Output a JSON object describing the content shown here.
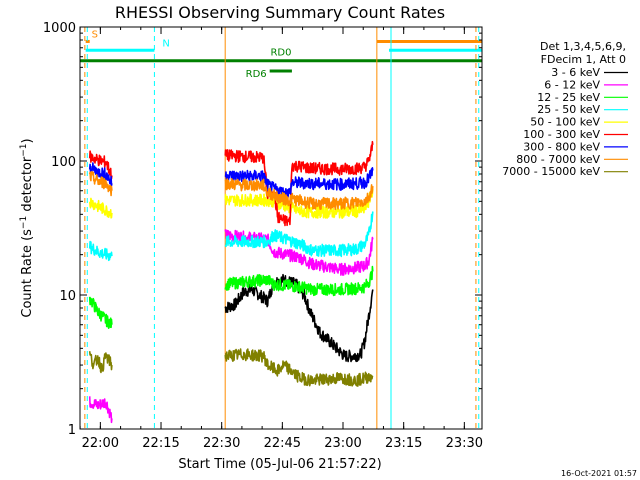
{
  "chart_data": {
    "type": "line",
    "title": "RHESSI Observing Summary Count Rates",
    "xlabel": "Start Time (05-Jul-06 21:57:22)",
    "ylabel": "Count Rate (s⁻¹ detector⁻¹)",
    "ylabel_parts": {
      "main": "Count Rate (s",
      "sup1": "−1",
      "mid": " detector",
      "sup2": "−1",
      "end": ")"
    },
    "yscale": "log",
    "ylim": [
      1,
      1000
    ],
    "xlim_minutes": [
      -2.4,
      97
    ],
    "x_ticks": [
      "22:00",
      "22:15",
      "22:30",
      "22:45",
      "23:00",
      "23:15",
      "23:30"
    ],
    "y_ticks": [
      "1",
      "10",
      "100",
      "1000"
    ],
    "timestamp": "16-Oct-2021 01:57",
    "legend_header": [
      "Det 1,3,4,5,6,9,",
      "FDecim 1, Att 0"
    ],
    "series": [
      {
        "name": "3 - 6 keV",
        "color": "#000000",
        "segments": [
          [
            [
              33.5,
              8.0
            ],
            [
              36,
              8.5
            ],
            [
              38,
              10.5
            ],
            [
              40,
              11.0
            ],
            [
              42,
              10.0
            ],
            [
              44,
              9.0
            ],
            [
              45.5,
              12.5
            ],
            [
              48,
              13.0
            ],
            [
              51,
              12.0
            ],
            [
              53,
              10.0
            ],
            [
              54.5,
              7.5
            ],
            [
              57,
              5.2
            ],
            [
              59,
              4.6
            ],
            [
              61,
              4.0
            ],
            [
              63,
              3.5
            ],
            [
              65,
              3.5
            ],
            [
              67,
              3.6
            ],
            [
              68,
              4.5
            ],
            [
              69,
              7.0
            ],
            [
              70,
              11.0
            ]
          ]
        ]
      },
      {
        "name": "6 - 12 keV",
        "color": "#ff00ff",
        "segments": [
          [
            [
              0,
              1.6
            ],
            [
              2,
              1.5
            ],
            [
              4,
              1.6
            ],
            [
              5.5,
              1.2
            ]
          ],
          [
            [
              33.5,
              28
            ],
            [
              38,
              27
            ],
            [
              44,
              26
            ],
            [
              45.5,
              21
            ],
            [
              52,
              19
            ],
            [
              55,
              17
            ],
            [
              62,
              15.5
            ],
            [
              66,
              16
            ],
            [
              68,
              16.5
            ],
            [
              69,
              18
            ],
            [
              70,
              26
            ]
          ]
        ]
      },
      {
        "name": "12 - 25 keV",
        "color": "#00ff00",
        "segments": [
          [
            [
              0,
              9.5
            ],
            [
              2,
              7.5
            ],
            [
              4,
              6.5
            ],
            [
              5.5,
              6.0
            ]
          ],
          [
            [
              33.5,
              12
            ],
            [
              38,
              12.5
            ],
            [
              44,
              13.0
            ],
            [
              45.5,
              12.0
            ],
            [
              52,
              11.5
            ],
            [
              55,
              11.0
            ],
            [
              62,
              11.0
            ],
            [
              66,
              11.2
            ],
            [
              68,
              11.5
            ],
            [
              69,
              12.5
            ],
            [
              70,
              15
            ]
          ]
        ]
      },
      {
        "name": "25 - 50 keV",
        "color": "#00ffff",
        "segments": [
          [
            [
              0,
              23
            ],
            [
              2,
              21
            ],
            [
              4,
              20
            ],
            [
              5.5,
              19.5
            ]
          ],
          [
            [
              33.5,
              25
            ],
            [
              38,
              25
            ],
            [
              44,
              25
            ],
            [
              45.5,
              28
            ],
            [
              52,
              24
            ],
            [
              55,
              21.5
            ],
            [
              62,
              21.5
            ],
            [
              66,
              22
            ],
            [
              68,
              24
            ],
            [
              69,
              28
            ],
            [
              70,
              42
            ]
          ]
        ]
      },
      {
        "name": "50 - 100 keV",
        "color": "#ffff00",
        "segments": [
          [
            [
              0,
              50
            ],
            [
              2,
              46
            ],
            [
              4,
              43
            ],
            [
              5.5,
              41
            ]
          ],
          [
            [
              33.5,
              51
            ],
            [
              38,
              51
            ],
            [
              43,
              51
            ],
            [
              44,
              51
            ],
            [
              45.5,
              50
            ],
            [
              52,
              42
            ],
            [
              55,
              41.5
            ],
            [
              62,
              41.5
            ],
            [
              66,
              42
            ],
            [
              68,
              44
            ],
            [
              69,
              50
            ],
            [
              70,
              62
            ]
          ]
        ]
      },
      {
        "name": "100 - 300 keV",
        "color": "#ff0000",
        "segments": [
          [
            [
              0,
              108
            ],
            [
              2,
              102
            ],
            [
              4,
              98
            ],
            [
              5.5,
              78
            ]
          ],
          [
            [
              33.5,
              110
            ],
            [
              38,
              108
            ],
            [
              43,
              106
            ],
            [
              44,
              55
            ],
            [
              45.5,
              62
            ],
            [
              46.5,
              38
            ],
            [
              48,
              36
            ],
            [
              49.5,
              35
            ],
            [
              50,
              93
            ],
            [
              55,
              88
            ],
            [
              62,
              87
            ],
            [
              66,
              88
            ],
            [
              68,
              90
            ],
            [
              69,
              100
            ],
            [
              70,
              132
            ]
          ]
        ]
      },
      {
        "name": "300 - 800 keV",
        "color": "#0000ff",
        "segments": [
          [
            [
              0,
              90
            ],
            [
              2,
              83
            ],
            [
              4,
              80
            ],
            [
              5.5,
              68
            ]
          ],
          [
            [
              33.5,
              78
            ],
            [
              38,
              77
            ],
            [
              43,
              77
            ],
            [
              44,
              66
            ],
            [
              46.5,
              60
            ],
            [
              48,
              58
            ],
            [
              49.5,
              58
            ],
            [
              50,
              69
            ],
            [
              55,
              68
            ],
            [
              62,
              67
            ],
            [
              66,
              68
            ],
            [
              68,
              69
            ],
            [
              69,
              74
            ],
            [
              70,
              85
            ]
          ]
        ]
      },
      {
        "name": "800 - 7000 keV",
        "color": "#ff8c00",
        "segments": [
          [
            [
              0,
              77
            ],
            [
              2,
              71
            ],
            [
              4,
              68
            ],
            [
              5.5,
              60
            ]
          ],
          [
            [
              33.5,
              68
            ],
            [
              38,
              66
            ],
            [
              43,
              66
            ],
            [
              44,
              58
            ],
            [
              46.5,
              54
            ],
            [
              48,
              52
            ],
            [
              49.5,
              51
            ],
            [
              50,
              52
            ],
            [
              55,
              48
            ],
            [
              62,
              48
            ],
            [
              66,
              49
            ],
            [
              68,
              50
            ],
            [
              69,
              54
            ],
            [
              70,
              65
            ]
          ]
        ]
      },
      {
        "name": "7000 - 15000 keV",
        "color": "#808000",
        "segments": [
          [
            [
              0,
              3.6
            ],
            [
              1,
              3.0
            ],
            [
              2,
              3.4
            ],
            [
              3,
              2.8
            ],
            [
              4,
              3.5
            ],
            [
              5.5,
              3.0
            ]
          ],
          [
            [
              33.5,
              3.5
            ],
            [
              38,
              3.6
            ],
            [
              43,
              3.5
            ],
            [
              44,
              3.0
            ],
            [
              46.5,
              2.7
            ],
            [
              48,
              3.0
            ],
            [
              52,
              2.4
            ],
            [
              55,
              2.3
            ],
            [
              62,
              2.4
            ],
            [
              66,
              2.3
            ],
            [
              68,
              2.4
            ],
            [
              70,
              2.5
            ]
          ]
        ]
      }
    ],
    "state_bars": [
      {
        "label": "S",
        "color": "#ff8c00",
        "x0": -1,
        "x1": 0,
        "value": 780
      },
      {
        "label": "N",
        "color": "#00ffff",
        "x0": -1,
        "x1": 16,
        "value": 670
      },
      {
        "label": "",
        "color": "#ff8c00",
        "x0": 71,
        "x1": 97,
        "value": 780
      },
      {
        "label": "",
        "color": "#00ffff",
        "x0": 74,
        "x1": 97,
        "value": 670
      },
      {
        "label": "RD0",
        "color": "#008000",
        "x0": -2.4,
        "x1": 97,
        "value": 560
      },
      {
        "label": "RD6",
        "color": "#008000",
        "x0": 44.5,
        "x1": 50,
        "value": 470
      }
    ],
    "vlines": [
      {
        "color": "#ff8c00",
        "x": -1.2,
        "style": "dash"
      },
      {
        "color": "#ff8c00",
        "x": 33.5,
        "style": "solid"
      },
      {
        "color": "#ff8c00",
        "x": 71,
        "style": "solid"
      },
      {
        "color": "#ff8c00",
        "x": 95.5,
        "style": "dash"
      },
      {
        "color": "#00ffff",
        "x": -0.6,
        "style": "dash"
      },
      {
        "color": "#00ffff",
        "x": 16,
        "style": "dash"
      },
      {
        "color": "#00ffff",
        "x": 74.5,
        "style": "solid"
      },
      {
        "color": "#00ffff",
        "x": 96.2,
        "style": "dash"
      }
    ],
    "grid": false,
    "legend_position": "right"
  }
}
